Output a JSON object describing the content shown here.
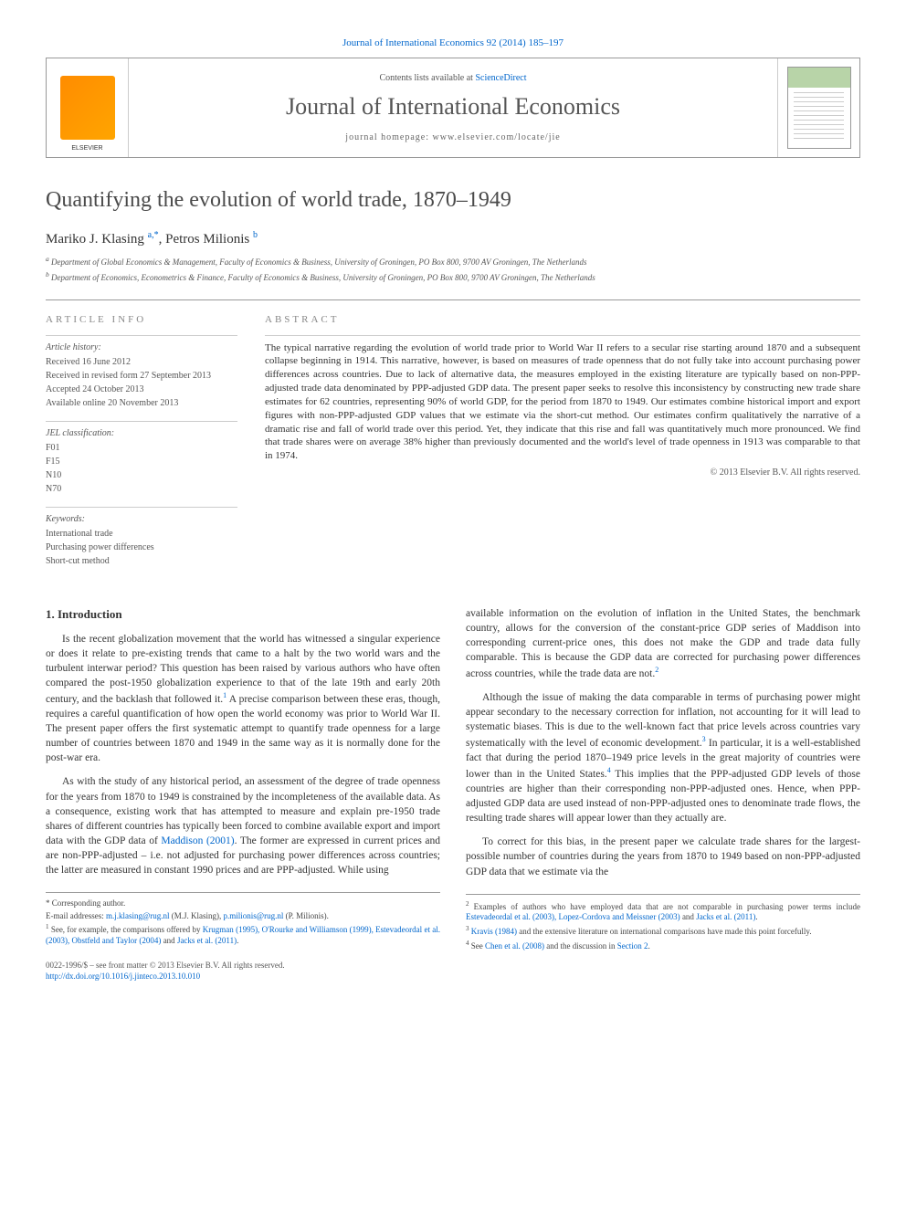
{
  "topLink": {
    "prefix": "Journal of International Economics 92 (2014) 185–197"
  },
  "header": {
    "contentsPrefix": "Contents lists available at ",
    "contentsLink": "ScienceDirect",
    "journalName": "Journal of International Economics",
    "homepage": "journal homepage: www.elsevier.com/locate/jie"
  },
  "article": {
    "title": "Quantifying the evolution of world trade, 1870–1949",
    "authors": [
      {
        "name": "Mariko J. Klasing",
        "affMark": "a,",
        "corr": "*"
      },
      {
        "name": "Petros Milionis",
        "affMark": "b",
        "corr": ""
      }
    ],
    "authorsJoined": ", ",
    "affiliations": [
      {
        "mark": "a",
        "text": "Department of Global Economics & Management, Faculty of Economics & Business, University of Groningen, PO Box 800, 9700 AV Groningen, The Netherlands"
      },
      {
        "mark": "b",
        "text": "Department of Economics, Econometrics & Finance, Faculty of Economics & Business, University of Groningen, PO Box 800, 9700 AV Groningen, The Netherlands"
      }
    ]
  },
  "info": {
    "heading": "ARTICLE INFO",
    "historyLabel": "Article history:",
    "history": [
      "Received 16 June 2012",
      "Received in revised form 27 September 2013",
      "Accepted 24 October 2013",
      "Available online 20 November 2013"
    ],
    "jelLabel": "JEL classification:",
    "jel": [
      "F01",
      "F15",
      "N10",
      "N70"
    ],
    "keywordsLabel": "Keywords:",
    "keywords": [
      "International trade",
      "Purchasing power differences",
      "Short-cut method"
    ]
  },
  "abstract": {
    "heading": "ABSTRACT",
    "text": "The typical narrative regarding the evolution of world trade prior to World War II refers to a secular rise starting around 1870 and a subsequent collapse beginning in 1914. This narrative, however, is based on measures of trade openness that do not fully take into account purchasing power differences across countries. Due to lack of alternative data, the measures employed in the existing literature are typically based on non-PPP-adjusted trade data denominated by PPP-adjusted GDP data. The present paper seeks to resolve this inconsistency by constructing new trade share estimates for 62 countries, representing 90% of world GDP, for the period from 1870 to 1949. Our estimates combine historical import and export figures with non-PPP-adjusted GDP values that we estimate via the short-cut method. Our estimates confirm qualitatively the narrative of a dramatic rise and fall of world trade over this period. Yet, they indicate that this rise and fall was quantitatively much more pronounced. We find that trade shares were on average 38% higher than previously documented and the world's level of trade openness in 1913 was comparable to that in 1974.",
    "copyright": "© 2013 Elsevier B.V. All rights reserved."
  },
  "section1": {
    "heading": "1. Introduction",
    "p1_a": "Is the recent globalization movement that the world has witnessed a singular experience or does it relate to pre-existing trends that came to a halt by the two world wars and the turbulent interwar period? This question has been raised by various authors who have often compared the post-1950 globalization experience to that of the late 19th and early 20th century, and the backlash that followed it.",
    "p1_b": " A precise comparison between these eras, though, requires a careful quantification of how open the world economy was prior to World War II. The present paper offers the first systematic attempt to quantify trade openness for a large number of countries between 1870 and 1949 in the same way as it is normally done for the post-war era.",
    "p2_a": "As with the study of any historical period, an assessment of the degree of trade openness for the years from 1870 to 1949 is constrained by the incompleteness of the available data. As a consequence, existing work that has attempted to measure and explain pre-1950 trade shares of different countries has typically been forced to combine available export and import data with the GDP data of ",
    "p2_link": "Maddison (2001)",
    "p2_b": ". The former are expressed in current prices and are non-PPP-adjusted – i.e. not adjusted for purchasing power differences across countries; the latter are measured in constant 1990 prices and are PPP-adjusted. While using",
    "p3": "available information on the evolution of inflation in the United States, the benchmark country, allows for the conversion of the constant-price GDP series of Maddison into corresponding current-price ones, this does not make the GDP and trade data fully comparable. This is because the GDP data are corrected for purchasing power differences across countries, while the trade data are not.",
    "p4_a": "Although the issue of making the data comparable in terms of purchasing power might appear secondary to the necessary correction for inflation, not accounting for it will lead to systematic biases. This is due to the well-known fact that price levels across countries vary systematically with the level of economic development.",
    "p4_b": " In particular, it is a well-established fact that during the period 1870–1949 price levels in the great majority of countries were lower than in the United States.",
    "p4_c": " This implies that the PPP-adjusted GDP levels of those countries are higher than their corresponding non-PPP-adjusted ones. Hence, when PPP-adjusted GDP data are used instead of non-PPP-adjusted ones to denominate trade flows, the resulting trade shares will appear lower than they actually are.",
    "p5": "To correct for this bias, in the present paper we calculate trade shares for the largest-possible number of countries during the years from 1870 to 1949 based on non-PPP-adjusted GDP data that we estimate via the"
  },
  "footnotes": {
    "corr": "Corresponding author.",
    "email_label": "E-mail addresses: ",
    "email1": "m.j.klasing@rug.nl",
    "email1_who": " (M.J. Klasing), ",
    "email2": "p.milionis@rug.nl",
    "email2_who": " (P. Milionis).",
    "f1_a": "See, for example, the comparisons offered by ",
    "f1_links": "Krugman (1995), O'Rourke and Williamson (1999), Estevadeordal et al. (2003), Obstfeld and Taylor (2004)",
    "f1_b": " and ",
    "f1_link2": "Jacks et al. (2011)",
    "f1_c": ".",
    "f2_a": "Examples of authors who have employed data that are not comparable in purchasing power terms include ",
    "f2_links": "Estevadeordal et al. (2003), Lopez-Cordova and Meissner (2003)",
    "f2_b": " and ",
    "f2_link2": "Jacks et al. (2011)",
    "f2_c": ".",
    "f3_a": "",
    "f3_link": "Kravis (1984)",
    "f3_b": " and the extensive literature on international comparisons have made this point forcefully.",
    "f4_a": "See ",
    "f4_link": "Chen et al. (2008)",
    "f4_b": " and the discussion in ",
    "f4_link2": "Section 2",
    "f4_c": "."
  },
  "bottom": {
    "issn": "0022-1996/$ – see front matter © 2013 Elsevier B.V. All rights reserved.",
    "doi": "http://dx.doi.org/10.1016/j.jinteco.2013.10.010"
  },
  "colors": {
    "link": "#0066cc",
    "text": "#333333",
    "muted": "#555555",
    "border": "#999999",
    "lightborder": "#cccccc"
  }
}
